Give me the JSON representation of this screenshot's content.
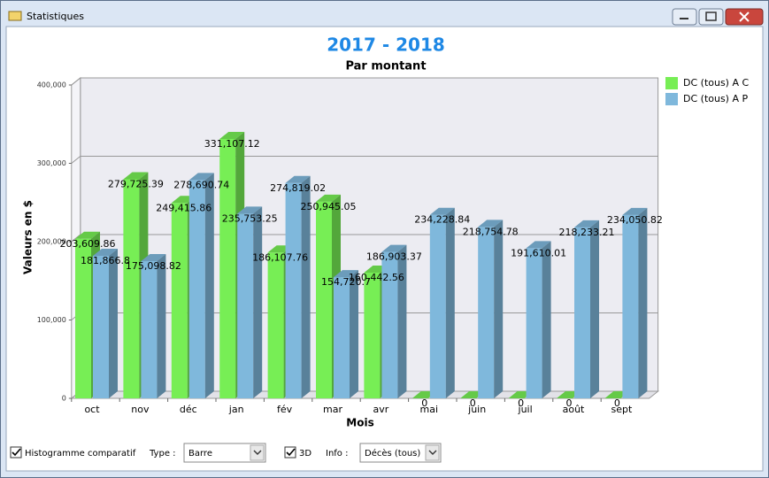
{
  "window": {
    "title": "Statistiques"
  },
  "chart_data": {
    "type": "bar",
    "title": "2017 - 2018",
    "subtitle": "Par montant",
    "xlabel": "Mois",
    "ylabel": "Valeurs en $",
    "categories": [
      "oct",
      "nov",
      "déc",
      "jan",
      "fév",
      "mar",
      "avr",
      "mai",
      "juin",
      "juil",
      "août",
      "sept"
    ],
    "series": [
      {
        "name": "DC (tous) A C",
        "color": "#77ee55",
        "values": [
          203609.86,
          279725.39,
          249415.86,
          331107.12,
          186107.76,
          250945.05,
          160442.56,
          0,
          0,
          0,
          0,
          0
        ],
        "value_labels": [
          "203,609.86",
          "279,725.39",
          "249,415.86",
          "331,107.12",
          "186,107.76",
          "250,945.05",
          "160,442.56",
          "0",
          "0",
          "0",
          "0",
          "0"
        ]
      },
      {
        "name": "DC (tous) A P",
        "color": "#7fb8dc",
        "values": [
          181866.8,
          175098.82,
          278690.74,
          235753.25,
          274819.02,
          154720.7,
          186903.37,
          234228.84,
          218754.78,
          191610.01,
          218233.21,
          234050.82
        ],
        "value_labels": [
          "181,866.8",
          "175,098.82",
          "278,690.74",
          "235,753.25",
          "274,819.02",
          "154,720.7",
          "186,903.37",
          "234,228.84",
          "218,754.78",
          "191,610.01",
          "218,233.21",
          "234,050.82"
        ]
      }
    ],
    "ylim": [
      0,
      400000
    ],
    "yticks": [
      0,
      {
        "value": 100000,
        "label": "100,000"
      },
      {
        "value": 200000,
        "label": "200,000"
      },
      {
        "value": 300000,
        "label": "300,000"
      },
      {
        "value": 400000,
        "label": "400,000"
      }
    ],
    "grid": true,
    "legend": "right"
  },
  "controls": {
    "comparative": {
      "label": "Histogramme comparatif",
      "checked": true
    },
    "type": {
      "label": "Type :",
      "value": "Barre"
    },
    "three_d": {
      "label": "3D",
      "checked": true
    },
    "info": {
      "label": "Info :",
      "value": "Décès (tous)"
    }
  }
}
